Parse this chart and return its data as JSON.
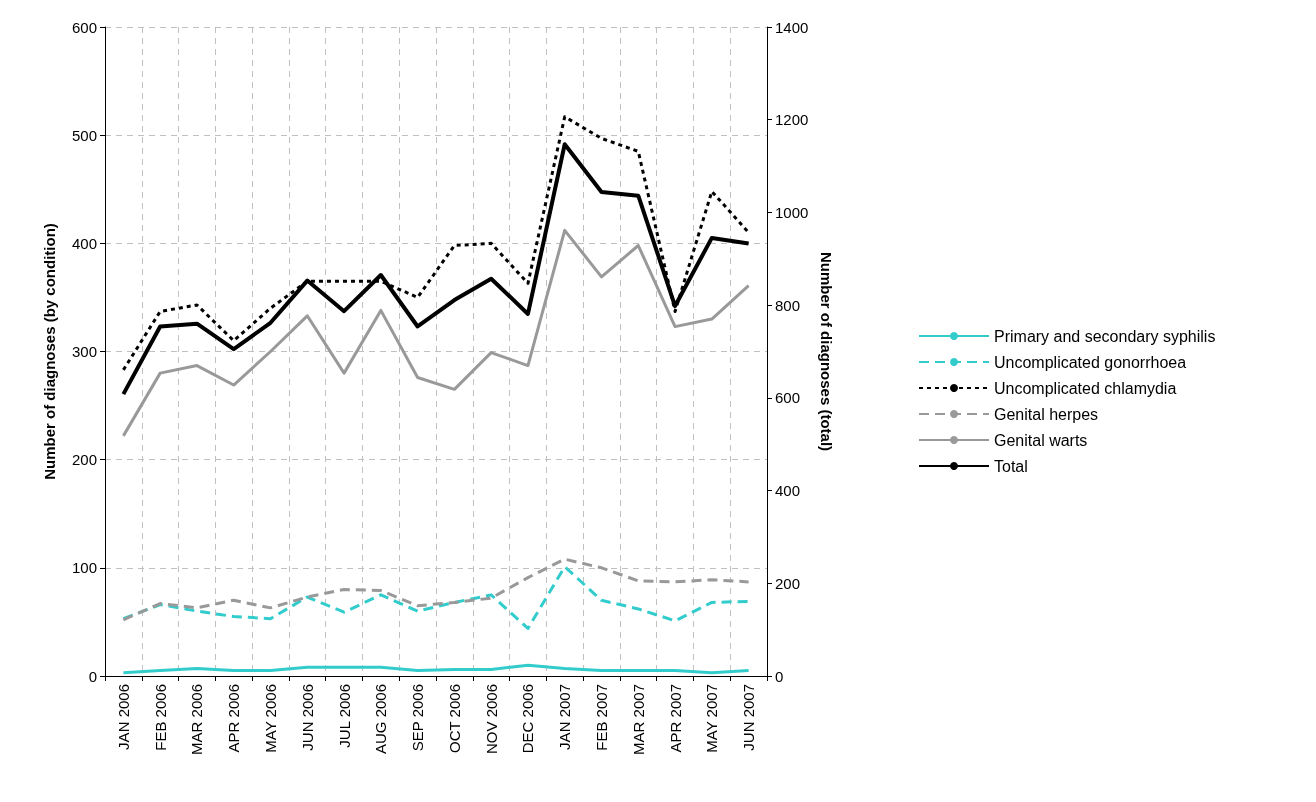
{
  "chart_data": {
    "type": "line",
    "ylabel": "Number of diagnoses (by condition)",
    "y2label": "Number of diagnoses (total)",
    "categories": [
      "JAN 2006",
      "FEB 2006",
      "MAR 2006",
      "APR 2006",
      "MAY 2006",
      "JUN 2006",
      "JUL 2006",
      "AUG 2006",
      "SEP 2006",
      "OCT 2006",
      "NOV 2006",
      "DEC 2006",
      "JAN 2007",
      "FEB 2007",
      "MAR 2007",
      "APR 2007",
      "MAY 2007",
      "JUN 2007"
    ],
    "series": [
      {
        "name": "Primary and secondary syphilis",
        "color": "#33cccc",
        "line_style": "solid",
        "values": [
          3,
          5,
          7,
          5,
          5,
          8,
          8,
          8,
          5,
          6,
          6,
          10,
          7,
          5,
          5,
          5,
          3,
          5
        ]
      },
      {
        "name": "Uncomplicated gonorrhoea",
        "color": "#33cccc",
        "line_style": "dashed",
        "values": [
          53,
          66,
          60,
          55,
          53,
          73,
          59,
          75,
          60,
          68,
          75,
          44,
          101,
          70,
          62,
          51,
          68,
          69
        ]
      },
      {
        "name": "Uncomplicated chlamydia",
        "color": "#000000",
        "line_style": "dotted",
        "values": [
          283,
          337,
          343,
          310,
          340,
          365,
          365,
          365,
          350,
          398,
          400,
          363,
          517,
          497,
          485,
          337,
          448,
          410
        ]
      },
      {
        "name": "Genital herpes",
        "color": "#999999",
        "line_style": "dashed",
        "values": [
          52,
          67,
          63,
          70,
          63,
          73,
          80,
          79,
          65,
          68,
          72,
          91,
          108,
          100,
          88,
          87,
          89,
          87
        ]
      },
      {
        "name": "Genital warts",
        "color": "#999999",
        "line_style": "solid",
        "values": [
          222,
          280,
          287,
          269,
          300,
          333,
          280,
          338,
          276,
          265,
          299,
          287,
          412,
          369,
          398,
          323,
          330,
          361
        ]
      },
      {
        "name": "Total",
        "color": "#000000",
        "line_style": "solid",
        "axis": "y2",
        "values": [
          608,
          754,
          760,
          705,
          762,
          853,
          787,
          865,
          754,
          811,
          857,
          781,
          1147,
          1044,
          1036,
          798,
          945,
          933
        ]
      }
    ],
    "ylim": [
      0,
      600
    ],
    "yticks": [
      0,
      100,
      200,
      300,
      400,
      500,
      600
    ],
    "y2lim": [
      0,
      1400
    ],
    "y2ticks": [
      0,
      200,
      400,
      600,
      800,
      1000,
      1200,
      1400
    ],
    "grid": true,
    "legend": "right",
    "marker": "none"
  }
}
